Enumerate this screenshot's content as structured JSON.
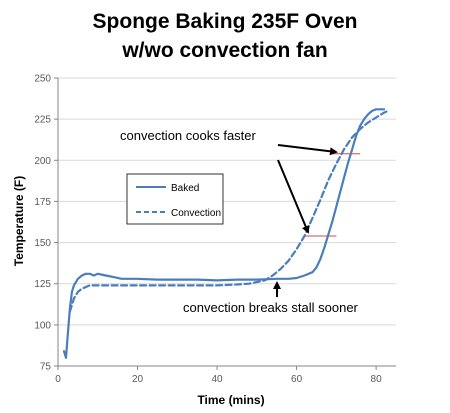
{
  "chart_data": {
    "type": "line",
    "title_lines": [
      "Sponge Baking 235F Oven",
      "w/wo convection fan"
    ],
    "xlabel": "Time (mins)",
    "ylabel": "Temperature (F)",
    "xlim": [
      0,
      85
    ],
    "ylim": [
      75,
      250
    ],
    "xticks": [
      "0",
      "20",
      "40",
      "60",
      "80"
    ],
    "yticks": [
      "75",
      "100",
      "125",
      "150",
      "175",
      "200",
      "225",
      "250"
    ],
    "grid": "horizontal",
    "legend_position": "center-left",
    "series": [
      {
        "name": "Baked",
        "style": "solid",
        "color": "#4a7ebb",
        "x": [
          1.5,
          2,
          2.5,
          3,
          3.5,
          4,
          5,
          6,
          7,
          8,
          9,
          10,
          12,
          14,
          16,
          20,
          25,
          30,
          35,
          40,
          45,
          50,
          55,
          58,
          60,
          62,
          64,
          65,
          66,
          67,
          68,
          69,
          70,
          71,
          72,
          73,
          74,
          75,
          76,
          77,
          78,
          79,
          80,
          81,
          82
        ],
        "y": [
          84,
          80,
          95,
          110,
          120,
          124,
          128,
          130,
          131,
          131,
          130,
          131,
          130,
          129,
          128,
          128,
          127.5,
          127.5,
          127.5,
          127,
          127.5,
          127.5,
          128,
          128,
          128.5,
          130,
          132,
          135,
          140,
          147,
          155,
          163,
          172,
          181,
          190,
          199,
          207,
          215,
          221,
          225,
          228,
          230,
          231,
          231,
          231
        ]
      },
      {
        "name": "Convection",
        "style": "dashed",
        "color": "#4a7ebb",
        "x": [
          3,
          4,
          5,
          6,
          7,
          8,
          10,
          15,
          20,
          25,
          30,
          35,
          40,
          45,
          48,
          50,
          52,
          54,
          56,
          58,
          60,
          62,
          64,
          66,
          68,
          70,
          72,
          74,
          76,
          78,
          80,
          82,
          83
        ],
        "y": [
          108,
          116,
          120,
          122,
          123,
          124,
          124,
          124,
          124,
          124,
          124,
          124,
          124,
          124.5,
          125,
          126,
          127,
          130,
          134,
          139,
          146,
          154,
          165,
          176,
          188,
          198,
          207,
          214,
          219,
          223,
          226,
          229,
          230
        ]
      }
    ],
    "annotations": [
      {
        "text": "convection cooks faster",
        "type": "callout"
      },
      {
        "text": "convection breaks stall sooner",
        "type": "callout"
      }
    ],
    "reference_lines": [
      {
        "y": 154,
        "x_from": 62,
        "x_to": 70,
        "color": "#c0504d"
      },
      {
        "y": 204,
        "x_from": 69,
        "x_to": 76,
        "color": "#c0504d"
      }
    ]
  }
}
